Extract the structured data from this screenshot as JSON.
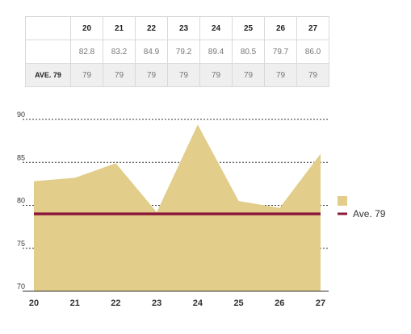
{
  "table": {
    "average_label": "AVE. 79",
    "columns": [
      "20",
      "21",
      "22",
      "23",
      "24",
      "25",
      "26",
      "27"
    ],
    "values": [
      "82.8",
      "83.2",
      "84.9",
      "79.2",
      "89.4",
      "80.5",
      "79.7",
      "86.0"
    ],
    "averages": [
      "79",
      "79",
      "79",
      "79",
      "79",
      "79",
      "79",
      "79"
    ]
  },
  "chart_data": {
    "type": "area",
    "x": [
      20,
      21,
      22,
      23,
      24,
      25,
      26,
      27
    ],
    "series": [
      {
        "values": [
          82.8,
          83.2,
          84.9,
          79.2,
          89.4,
          80.5,
          79.7,
          86.0
        ],
        "color": "#e2cd8b"
      },
      {
        "name": "Ave. 79",
        "values": [
          79,
          79,
          79,
          79,
          79,
          79,
          79,
          79
        ],
        "color": "#8b1a3a",
        "kind": "line"
      }
    ],
    "ylim": [
      70,
      90
    ],
    "yticks": [
      70,
      75,
      80,
      85,
      90
    ],
    "grid": true,
    "legend": "right"
  }
}
